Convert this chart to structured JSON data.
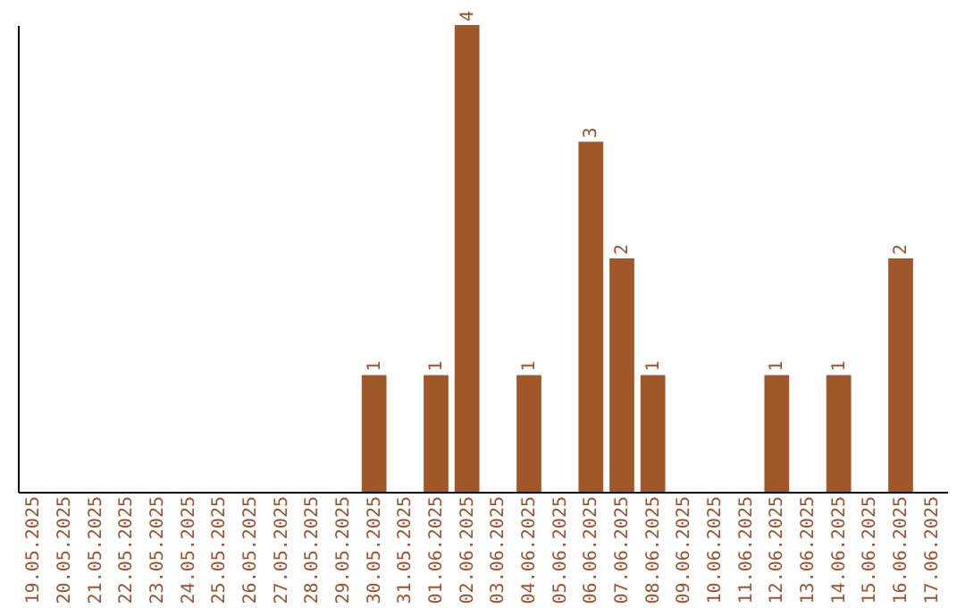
{
  "chart_data": {
    "type": "bar",
    "categories": [
      "19.05.2025",
      "20.05.2025",
      "21.05.2025",
      "22.05.2025",
      "23.05.2025",
      "24.05.2025",
      "25.05.2025",
      "26.05.2025",
      "27.05.2025",
      "28.05.2025",
      "29.05.2025",
      "30.05.2025",
      "31.05.2025",
      "01.06.2025",
      "02.06.2025",
      "03.06.2025",
      "04.06.2025",
      "05.06.2025",
      "06.06.2025",
      "07.06.2025",
      "08.06.2025",
      "09.06.2025",
      "10.06.2025",
      "11.06.2025",
      "12.06.2025",
      "13.06.2025",
      "14.06.2025",
      "15.06.2025",
      "16.06.2025",
      "17.06.2025"
    ],
    "values": [
      0,
      0,
      0,
      0,
      0,
      0,
      0,
      0,
      0,
      0,
      0,
      1,
      0,
      1,
      4,
      0,
      1,
      0,
      3,
      2,
      1,
      0,
      0,
      0,
      1,
      0,
      1,
      0,
      2,
      0
    ],
    "value_labels": [
      null,
      null,
      null,
      null,
      null,
      null,
      null,
      null,
      null,
      null,
      null,
      "1",
      null,
      "1",
      "4",
      null,
      "1",
      null,
      "3",
      "2",
      "1",
      null,
      null,
      null,
      "1",
      null,
      "1",
      null,
      "2",
      null
    ],
    "color": "#a0582a",
    "tick_labels": "x",
    "grid": false
  }
}
